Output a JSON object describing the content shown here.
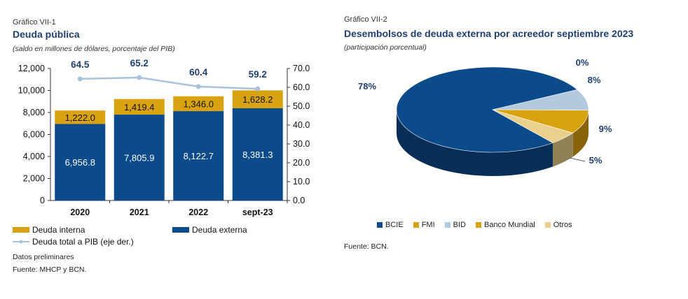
{
  "chart_data": [
    {
      "type": "bar",
      "kicker": "Gráfico VII-1",
      "title": "Deuda pública",
      "subtitle": "(saldo en millones de dólares, porcentaje del PIB)",
      "categories": [
        "2020",
        "2021",
        "2022",
        "sept-23"
      ],
      "series": [
        {
          "name": "Deuda externa",
          "values": [
            6956.8,
            7805.9,
            8122.7,
            8381.3
          ],
          "labels": [
            "6,956.8",
            "7,805.9",
            "8,122.7",
            "8,381.3"
          ],
          "color": "#0b4a8b"
        },
        {
          "name": "Deuda interna",
          "values": [
            1222.0,
            1419.4,
            1346.0,
            1628.2
          ],
          "labels": [
            "1,222.0",
            "1,419.4",
            "1,346.0",
            "1,628.2"
          ],
          "color": "#d9a210"
        },
        {
          "name": "Deuda total a PIB (eje der.)",
          "axis": "right",
          "type": "line",
          "values": [
            64.5,
            65.2,
            60.4,
            59.2
          ],
          "labels": [
            "64.5",
            "65.2",
            "60.4",
            "59.2"
          ],
          "color": "#a9c3db"
        }
      ],
      "ylim": [
        0,
        12000
      ],
      "yticks": [
        "0",
        "2,000",
        "4,000",
        "6,000",
        "8,000",
        "10,000",
        "12,000"
      ],
      "y2lim": [
        0,
        70
      ],
      "y2ticks": [
        "0.0",
        "10.0",
        "20.0",
        "30.0",
        "40.0",
        "50.0",
        "60.0",
        "70.0"
      ],
      "legend_position": "bottom",
      "notes": [
        "Datos preliminares",
        "Fuente: MHCP y BCN."
      ]
    },
    {
      "type": "pie",
      "kicker": "Gráfico VII-2",
      "title": "Desembolsos de deuda externa por acreedor septiembre 2023",
      "subtitle": "(participación porcentual)",
      "slices": [
        {
          "name": "BCIE",
          "value": 78,
          "label": "78%",
          "color": "#0b4a8b"
        },
        {
          "name": "FMI",
          "value": 0,
          "label": "0%",
          "color": "#d9a210"
        },
        {
          "name": "BID",
          "value": 8,
          "label": "8%",
          "color": "#b3c9dd"
        },
        {
          "name": "Banco Mundial",
          "value": 9,
          "label": "9%",
          "color": "#d9a210"
        },
        {
          "name": "Otros",
          "value": 5,
          "label": "5%",
          "color": "#ead08c"
        }
      ],
      "legend_position": "bottom",
      "notes": [
        "Fuente: BCN."
      ]
    }
  ]
}
